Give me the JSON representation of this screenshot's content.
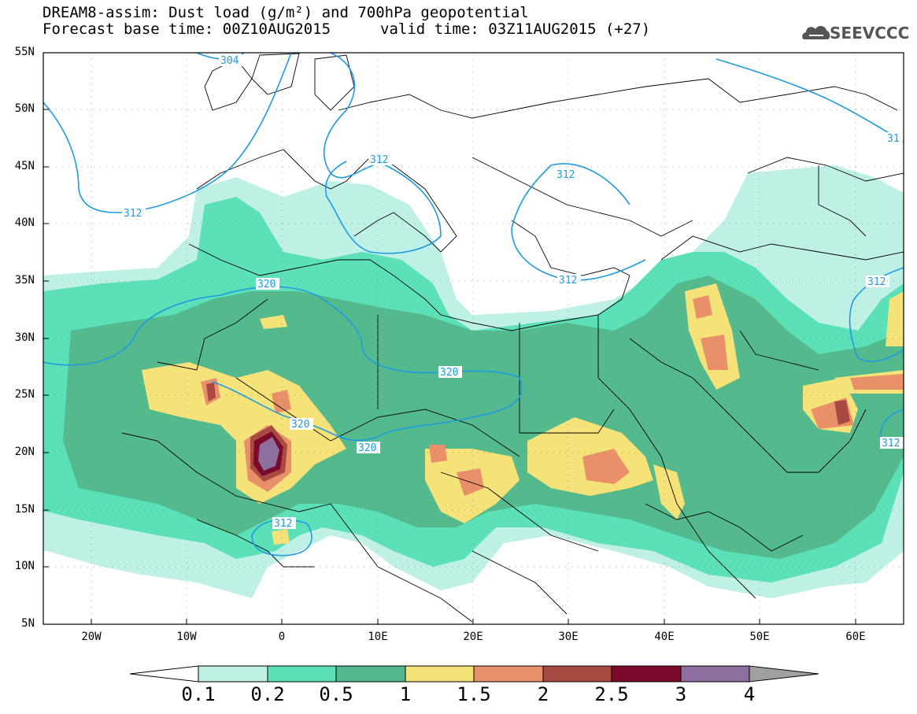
{
  "title": {
    "line1": "DREAM8-assim: Dust load (g/m²) and 700hPa geopotential",
    "line2_left": "Forecast base time: 00Z10AUG2015",
    "line2_right": "valid time: 03Z11AUG2015 (+27)"
  },
  "logo": {
    "text": "SEEVCCC",
    "icon": "cloud-icon"
  },
  "axes": {
    "lat_ticks": [
      "55N",
      "50N",
      "45N",
      "40N",
      "35N",
      "30N",
      "25N",
      "20N",
      "15N",
      "10N",
      "5N"
    ],
    "lon_ticks": [
      "20W",
      "10W",
      "0",
      "10E",
      "20E",
      "30E",
      "40E",
      "50E",
      "60E"
    ],
    "lat_range": [
      5,
      55
    ],
    "lon_range": [
      -25,
      65
    ]
  },
  "colorbar": {
    "labels": [
      "0.1",
      "0.2",
      "0.5",
      "1",
      "1.5",
      "2",
      "2.5",
      "3",
      "4"
    ],
    "colors": [
      "#ffffff",
      "#bff0e6",
      "#5be0b8",
      "#54b98c",
      "#f5e37a",
      "#e9906a",
      "#a94a42",
      "#7b0a2a",
      "#8d6fa0",
      "#a0a0a0"
    ]
  },
  "contour_labels": [
    "304",
    "312",
    "312",
    "312",
    "312",
    "320",
    "320",
    "320",
    "320",
    "312",
    "312",
    "31"
  ],
  "map_colors": {
    "ocean": "#ffffff",
    "border": "#000000",
    "contour": "#1e9be0"
  }
}
